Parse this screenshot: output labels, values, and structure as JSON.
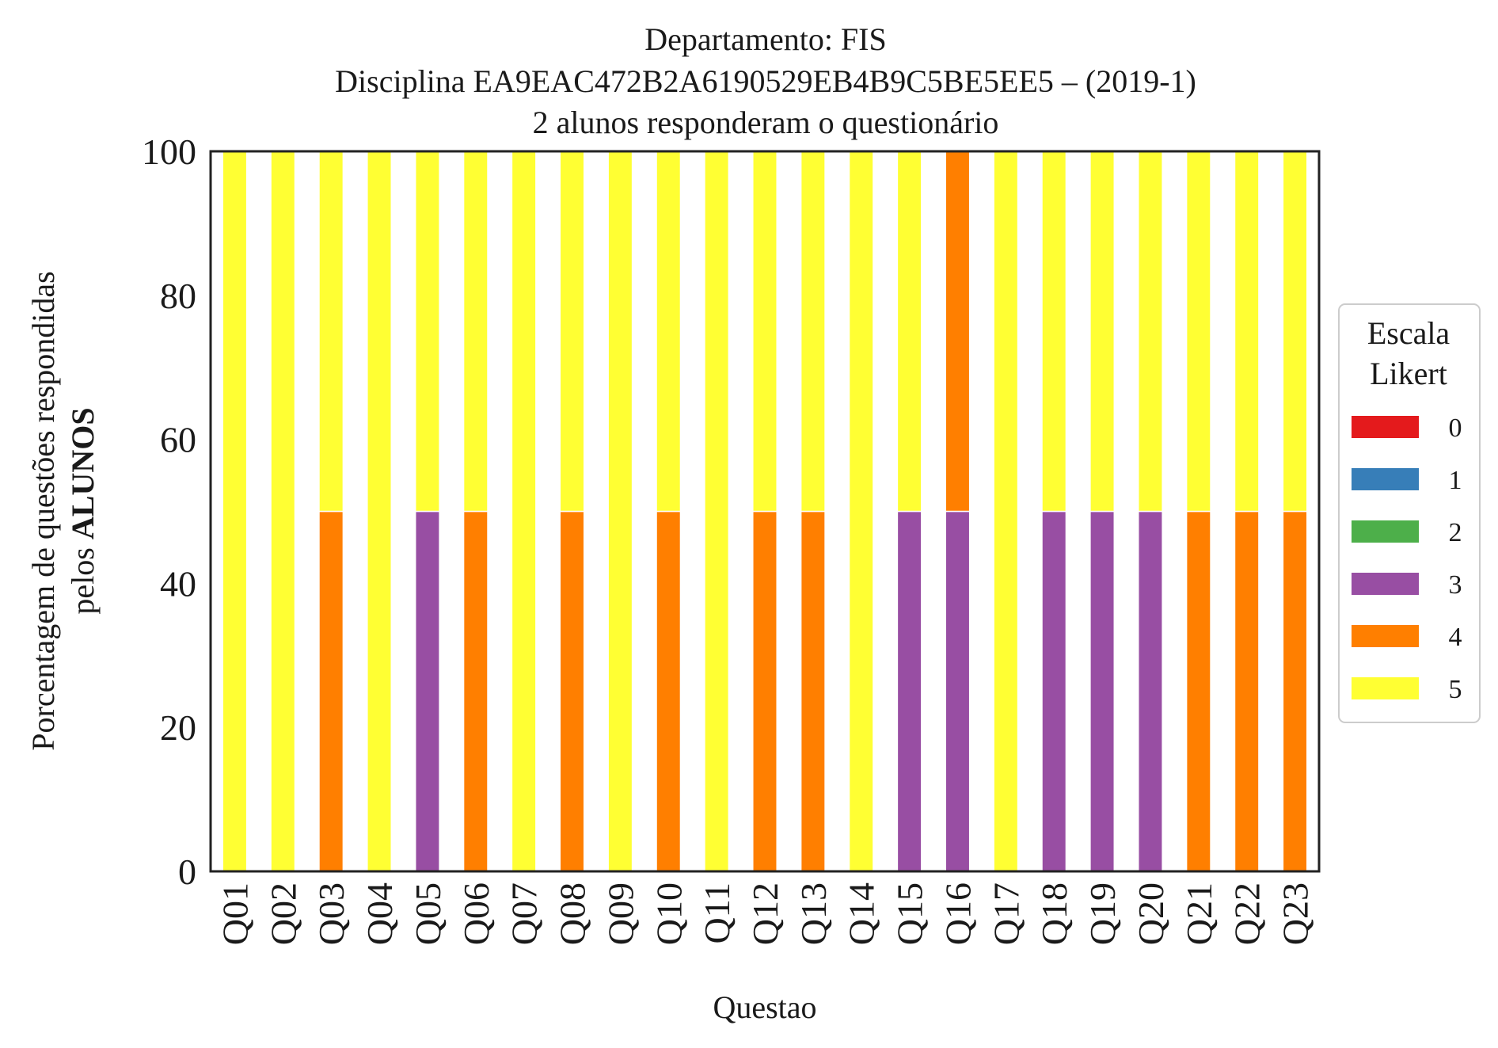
{
  "chart_data": {
    "type": "bar",
    "stacked": true,
    "title": "Departamento: FIS",
    "subtitle_line1": "Disciplina EA9EAC472B2A6190529EB4B9C5BE5EE5 – (2019-1)",
    "subtitle_line2": "2 alunos responderam o questionário",
    "xlabel": "Questao",
    "ylabel_line1": "Porcentagem de questões respondidas",
    "ylabel_line2_prefix": "pelos ",
    "ylabel_line2_bold": "ALUNOS",
    "ylim": [
      0,
      100
    ],
    "yticks": [
      "0",
      "20",
      "40",
      "60",
      "80",
      "100"
    ],
    "grid": false,
    "legend": {
      "title_line1": "Escala",
      "title_line2": "Likert",
      "placement": "right-center",
      "entries": [
        "0",
        "1",
        "2",
        "3",
        "4",
        "5"
      ]
    },
    "colors": [
      "#e41a1c",
      "#377eb8",
      "#4daf4a",
      "#984ea3",
      "#ff7f00",
      "#ffff33"
    ],
    "categories": [
      "Q01",
      "Q02",
      "Q03",
      "Q04",
      "Q05",
      "Q06",
      "Q07",
      "Q08",
      "Q09",
      "Q10",
      "Q11",
      "Q12",
      "Q13",
      "Q14",
      "Q15",
      "Q16",
      "Q17",
      "Q18",
      "Q19",
      "Q20",
      "Q21",
      "Q22",
      "Q23"
    ],
    "series": [
      {
        "name": "0",
        "values": [
          0,
          0,
          0,
          0,
          0,
          0,
          0,
          0,
          0,
          0,
          0,
          0,
          0,
          0,
          0,
          0,
          0,
          0,
          0,
          0,
          0,
          0,
          0
        ]
      },
      {
        "name": "1",
        "values": [
          0,
          0,
          0,
          0,
          0,
          0,
          0,
          0,
          0,
          0,
          0,
          0,
          0,
          0,
          0,
          0,
          0,
          0,
          0,
          0,
          0,
          0,
          0
        ]
      },
      {
        "name": "2",
        "values": [
          0,
          0,
          0,
          0,
          0,
          0,
          0,
          0,
          0,
          0,
          0,
          0,
          0,
          0,
          0,
          0,
          0,
          0,
          0,
          0,
          0,
          0,
          0
        ]
      },
      {
        "name": "3",
        "values": [
          0,
          0,
          0,
          0,
          50,
          0,
          0,
          0,
          0,
          0,
          0,
          0,
          0,
          0,
          50,
          50,
          0,
          50,
          50,
          50,
          0,
          0,
          0
        ]
      },
      {
        "name": "4",
        "values": [
          0,
          0,
          50,
          0,
          0,
          50,
          0,
          50,
          0,
          50,
          0,
          50,
          50,
          0,
          0,
          50,
          0,
          0,
          0,
          0,
          50,
          50,
          50
        ]
      },
      {
        "name": "5",
        "values": [
          100,
          100,
          50,
          100,
          50,
          50,
          100,
          50,
          100,
          50,
          100,
          50,
          50,
          100,
          50,
          0,
          100,
          50,
          50,
          50,
          50,
          50,
          50
        ]
      }
    ]
  }
}
